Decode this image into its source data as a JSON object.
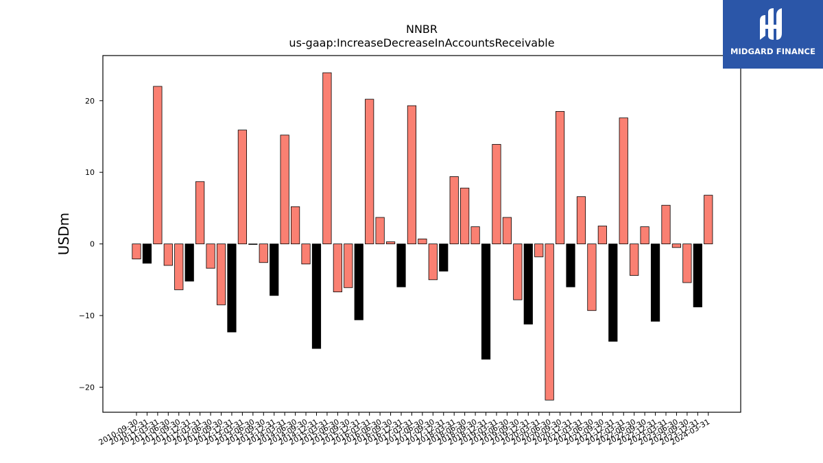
{
  "brand": {
    "name": "MIDGARD FINANCE",
    "bg": "#2b56a8"
  },
  "colors": {
    "positive": "#fa8072",
    "negative_q4": "#000000",
    "edge": "#000000"
  },
  "chart_data": {
    "type": "bar",
    "title": "NNBR",
    "subtitle": "us-gaap:IncreaseDecreaseInAccountsReceivable",
    "xlabel": "",
    "ylabel": "USDm",
    "ylim": [
      -23.5,
      26.3
    ],
    "yticks": [
      -20,
      -10,
      0,
      10,
      20
    ],
    "grid": false,
    "categories": [
      "2010-09-30",
      "2010-12-31",
      "2011-03-31",
      "2011-06-30",
      "2011-09-30",
      "2011-12-31",
      "2012-03-31",
      "2012-06-30",
      "2012-09-30",
      "2012-12-31",
      "2013-03-31",
      "2013-06-30",
      "2013-09-30",
      "2013-12-31",
      "2014-03-31",
      "2014-06-30",
      "2014-09-30",
      "2014-12-31",
      "2015-03-31",
      "2015-06-30",
      "2015-09-30",
      "2015-12-31",
      "2016-03-31",
      "2016-06-30",
      "2016-09-30",
      "2016-12-31",
      "2017-03-31",
      "2017-06-30",
      "2017-09-30",
      "2017-12-31",
      "2018-03-31",
      "2018-06-30",
      "2018-09-30",
      "2018-12-31",
      "2019-03-31",
      "2019-06-30",
      "2019-09-30",
      "2019-12-31",
      "2020-03-31",
      "2020-06-30",
      "2020-09-30",
      "2020-12-31",
      "2021-03-31",
      "2021-06-30",
      "2021-09-30",
      "2021-12-31",
      "2022-03-31",
      "2022-06-30",
      "2022-09-30",
      "2022-12-31",
      "2023-03-31",
      "2023-06-30",
      "2023-09-30",
      "2023-12-31",
      "2024-03-31"
    ],
    "values": [
      -2.1,
      -2.7,
      22.0,
      -3.0,
      -6.4,
      -5.2,
      8.7,
      -3.4,
      -8.5,
      -12.3,
      15.9,
      0.0,
      -2.6,
      -7.2,
      15.2,
      5.2,
      -2.8,
      -14.6,
      23.9,
      -6.7,
      -6.1,
      -10.6,
      20.2,
      3.7,
      0.3,
      -6.0,
      19.3,
      0.7,
      -5.0,
      -3.8,
      9.4,
      7.8,
      2.4,
      -16.1,
      13.9,
      3.7,
      -7.8,
      -11.2,
      -1.8,
      -21.8,
      18.5,
      -6.0,
      6.6,
      -9.3,
      2.5,
      -13.6,
      17.6,
      -4.4,
      2.4,
      -10.8,
      5.4,
      -0.5,
      -5.4,
      -8.8,
      6.8
    ]
  }
}
